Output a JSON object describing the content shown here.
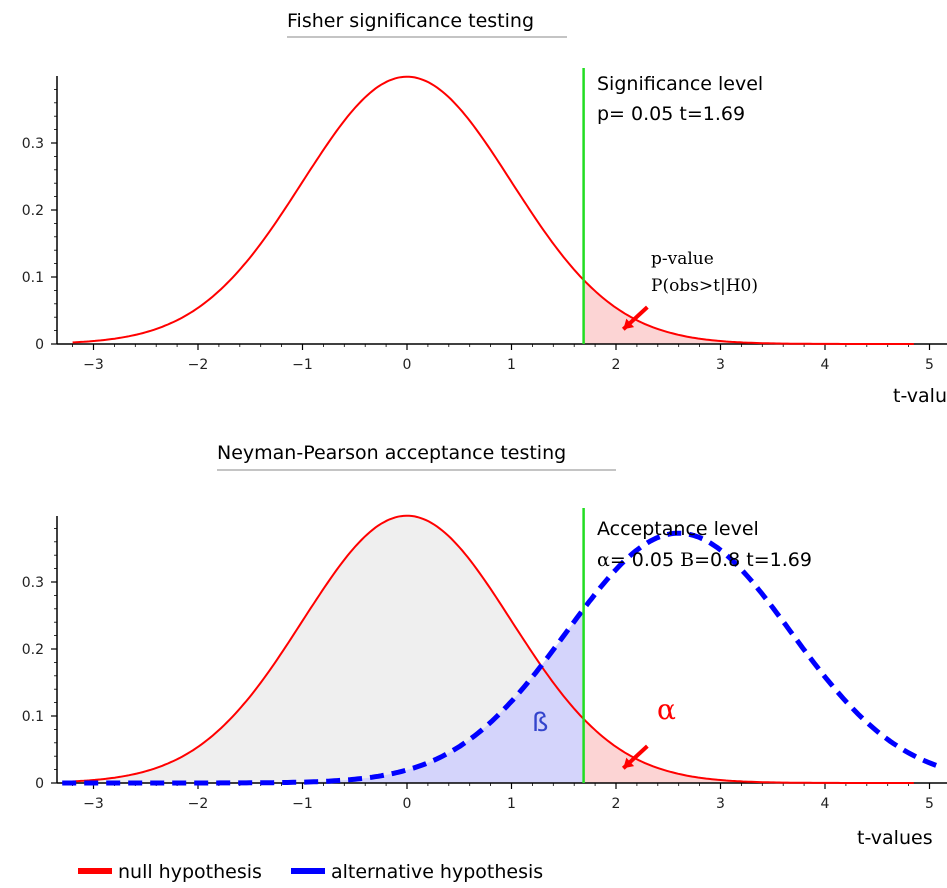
{
  "chart_data": [
    {
      "type": "area",
      "title": "Fisher significance testing",
      "xlabel": "t-values",
      "ylabel": "",
      "xlim": [
        -3.3,
        5.1
      ],
      "ylim": [
        0,
        0.4
      ],
      "x_ticks": [
        -3,
        -2,
        -1,
        0,
        1,
        2,
        3,
        4,
        5
      ],
      "y_ticks": [
        0,
        0.1,
        0.2,
        0.3
      ],
      "y_tick_labels": [
        "0",
        "0.1",
        "0.2",
        "0.3"
      ],
      "series": [
        {
          "distribution": "normal",
          "mean": 0,
          "sd": 1,
          "x_start": -3.2,
          "x_end": 4.85,
          "color": "#ff0000",
          "style": "solid"
        }
      ],
      "shaded_regions": [
        {
          "from": 1.69,
          "to": 4.85,
          "under": 0,
          "color": "#fcd4d4"
        }
      ],
      "threshold": {
        "x": 1.69,
        "color": "#22dd22"
      },
      "annotations": {
        "level_label": "Significance level",
        "level_values": "p= 0.05 t=1.69",
        "pvalue_label": "p-value",
        "pvalue_formula": "P(obs>t|H0)"
      },
      "arrow": {
        "from": [
          2.3,
          0.055
        ],
        "to": [
          2.07,
          0.022
        ],
        "color": "#ff0000"
      }
    },
    {
      "type": "area",
      "title": "Neyman-Pearson acceptance testing",
      "xlabel": "t-values",
      "ylabel": "",
      "xlim": [
        -3.3,
        5.1
      ],
      "ylim": [
        0,
        0.4
      ],
      "x_ticks": [
        -3,
        -2,
        -1,
        0,
        1,
        2,
        3,
        4,
        5
      ],
      "y_ticks": [
        0,
        0.1,
        0.2,
        0.3
      ],
      "y_tick_labels": [
        "0",
        "0.1",
        "0.2",
        "0.3"
      ],
      "series": [
        {
          "distribution": "normal",
          "mean": 0,
          "sd": 1,
          "x_start": -3.2,
          "x_end": 4.85,
          "color": "#ff0000",
          "style": "solid"
        },
        {
          "distribution": "normal",
          "mean": 2.6,
          "sd": 1.07,
          "x_start": -3.3,
          "x_end": 5.1,
          "color": "#0000ff",
          "style": "dashed"
        }
      ],
      "shaded_regions": [
        {
          "from": -3.2,
          "to": 1.69,
          "under": 0,
          "color": "#efefef"
        },
        {
          "from": -3.3,
          "to": 1.69,
          "under": 1,
          "color": "#d4d4fb"
        },
        {
          "from": 1.69,
          "to": 4.85,
          "under": 0,
          "color": "#fcd4d4"
        }
      ],
      "threshold": {
        "x": 1.69,
        "color": "#22dd22"
      },
      "annotations": {
        "level_label": "Acceptance level",
        "alpha_sym": "α",
        "level_mid": "= 0.05 ",
        "beta_sym": "B",
        "level_end": "=0.8 t=1.69",
        "beta_region_label": "ß",
        "alpha_region_label": "α"
      },
      "arrow": {
        "from": [
          2.3,
          0.055
        ],
        "to": [
          2.07,
          0.022
        ],
        "color": "#ff0000"
      }
    }
  ],
  "legend": {
    "placement": "bottom-left",
    "items": [
      {
        "label": "null hypothesis",
        "color": "#ff0000"
      },
      {
        "label": "alternative hypothesis",
        "color": "#0000ff"
      }
    ]
  }
}
